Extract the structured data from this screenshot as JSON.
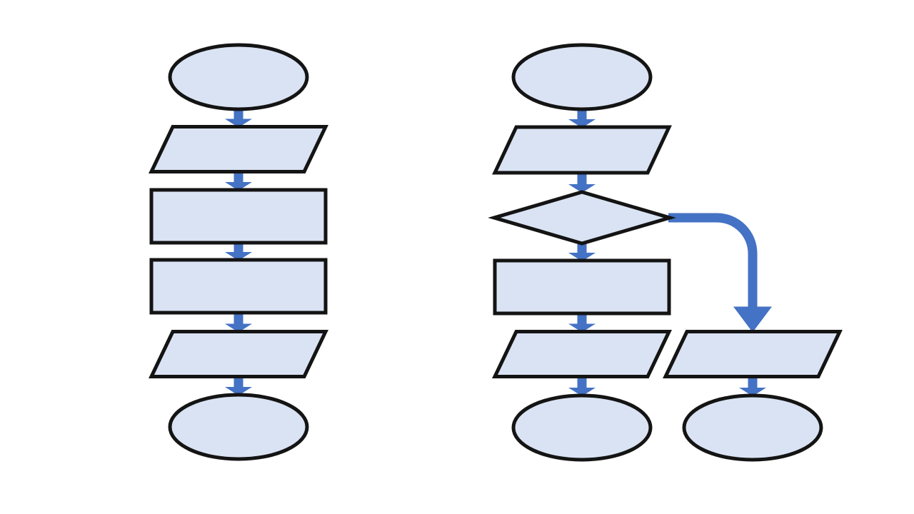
{
  "colors": {
    "shape_fill": "#dae3f3",
    "shape_stroke": "#141414",
    "connector": "#4472c4",
    "background": "#ffffff"
  },
  "flowcharts": [
    {
      "id": "left",
      "shapes": [
        {
          "id": "L1",
          "type": "terminator",
          "label": ""
        },
        {
          "id": "L2",
          "type": "input-output",
          "label": ""
        },
        {
          "id": "L3",
          "type": "process",
          "label": ""
        },
        {
          "id": "L4",
          "type": "process",
          "label": ""
        },
        {
          "id": "L5",
          "type": "input-output",
          "label": ""
        },
        {
          "id": "L6",
          "type": "terminator",
          "label": ""
        }
      ],
      "connectors": [
        {
          "from": "L1",
          "to": "L2"
        },
        {
          "from": "L2",
          "to": "L3"
        },
        {
          "from": "L3",
          "to": "L4"
        },
        {
          "from": "L4",
          "to": "L5"
        },
        {
          "from": "L5",
          "to": "L6"
        }
      ]
    },
    {
      "id": "right",
      "shapes": [
        {
          "id": "R1",
          "type": "terminator",
          "label": ""
        },
        {
          "id": "R2",
          "type": "input-output",
          "label": ""
        },
        {
          "id": "R3",
          "type": "decision",
          "label": ""
        },
        {
          "id": "R4",
          "type": "process",
          "label": ""
        },
        {
          "id": "R5",
          "type": "input-output",
          "label": ""
        },
        {
          "id": "R6",
          "type": "terminator",
          "label": ""
        },
        {
          "id": "R7",
          "type": "input-output",
          "label": ""
        },
        {
          "id": "R8",
          "type": "terminator",
          "label": ""
        }
      ],
      "connectors": [
        {
          "from": "R1",
          "to": "R2"
        },
        {
          "from": "R2",
          "to": "R3"
        },
        {
          "from": "R3",
          "to": "R4"
        },
        {
          "from": "R3",
          "to": "R7"
        },
        {
          "from": "R4",
          "to": "R5"
        },
        {
          "from": "R5",
          "to": "R6"
        },
        {
          "from": "R7",
          "to": "R8"
        }
      ]
    }
  ]
}
